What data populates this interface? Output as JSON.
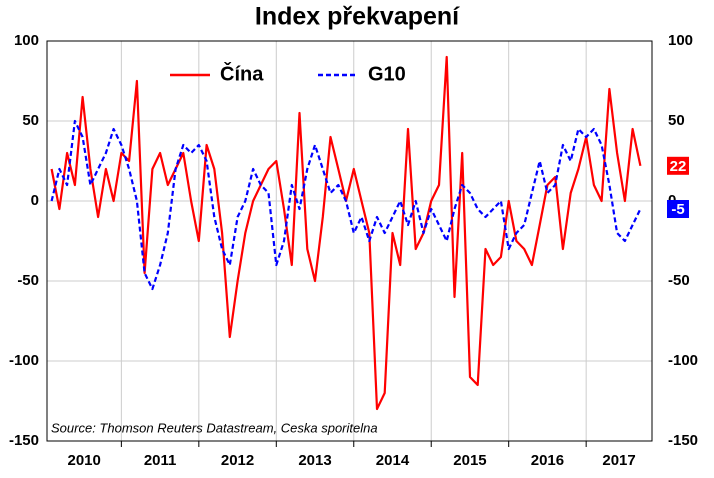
{
  "chart_data": {
    "type": "line",
    "title": "Index překvapení",
    "source": "Source: Thomson Reuters Datastream, Ceska sporitelna",
    "x": [
      2010.1,
      2010.2,
      2010.3,
      2010.4,
      2010.5,
      2010.6,
      2010.7,
      2010.8,
      2010.9,
      2011.0,
      2011.1,
      2011.2,
      2011.3,
      2011.4,
      2011.5,
      2011.6,
      2011.7,
      2011.8,
      2011.9,
      2012.0,
      2012.1,
      2012.2,
      2012.3,
      2012.4,
      2012.5,
      2012.6,
      2012.7,
      2012.8,
      2012.9,
      2013.0,
      2013.1,
      2013.2,
      2013.3,
      2013.4,
      2013.5,
      2013.6,
      2013.7,
      2013.8,
      2013.9,
      2014.0,
      2014.1,
      2014.2,
      2014.3,
      2014.4,
      2014.5,
      2014.6,
      2014.7,
      2014.8,
      2014.9,
      2015.0,
      2015.1,
      2015.2,
      2015.3,
      2015.4,
      2015.5,
      2015.6,
      2015.7,
      2015.8,
      2015.9,
      2016.0,
      2016.1,
      2016.2,
      2016.3,
      2016.4,
      2016.5,
      2016.6,
      2016.7,
      2016.8,
      2016.9,
      2017.0,
      2017.1,
      2017.2,
      2017.3,
      2017.4,
      2017.5,
      2017.6,
      2017.7
    ],
    "series": [
      {
        "name": "Čína",
        "color": "#ff0000",
        "dash": false,
        "values": [
          20,
          -5,
          30,
          10,
          65,
          20,
          -10,
          20,
          0,
          30,
          25,
          75,
          -45,
          20,
          30,
          10,
          20,
          30,
          0,
          -25,
          35,
          20,
          -20,
          -85,
          -50,
          -20,
          0,
          10,
          20,
          25,
          -5,
          -40,
          55,
          -30,
          -50,
          -10,
          40,
          20,
          0,
          20,
          0,
          -20,
          -130,
          -120,
          -20,
          -40,
          45,
          -30,
          -20,
          0,
          10,
          90,
          -60,
          30,
          -110,
          -115,
          -30,
          -40,
          -35,
          0,
          -25,
          -30,
          -40,
          -15,
          10,
          15,
          -30,
          5,
          20,
          40,
          10,
          0,
          70,
          30,
          0,
          45,
          22
        ]
      },
      {
        "name": "G10",
        "color": "#0000ff",
        "dash": true,
        "values": [
          0,
          20,
          10,
          50,
          40,
          10,
          20,
          30,
          45,
          35,
          20,
          0,
          -45,
          -55,
          -40,
          -20,
          20,
          35,
          30,
          35,
          25,
          -10,
          -30,
          -40,
          -10,
          0,
          20,
          10,
          5,
          -40,
          -25,
          10,
          -5,
          20,
          35,
          20,
          5,
          10,
          0,
          -20,
          -10,
          -25,
          -10,
          -20,
          -10,
          0,
          -15,
          0,
          -20,
          -5,
          -15,
          -25,
          -5,
          10,
          5,
          -5,
          -10,
          -5,
          0,
          -30,
          -20,
          -15,
          5,
          25,
          5,
          10,
          35,
          25,
          45,
          40,
          45,
          35,
          10,
          -20,
          -25,
          -15,
          -5
        ]
      }
    ],
    "xlim": [
      2010.04,
      2017.85
    ],
    "xticks": [
      2010,
      2011,
      2012,
      2013,
      2014,
      2015,
      2016,
      2017
    ],
    "ylim": [
      -150,
      100
    ],
    "yticks": [
      -150,
      -100,
      -50,
      0,
      50,
      100
    ],
    "grid": true,
    "legend": "top"
  }
}
